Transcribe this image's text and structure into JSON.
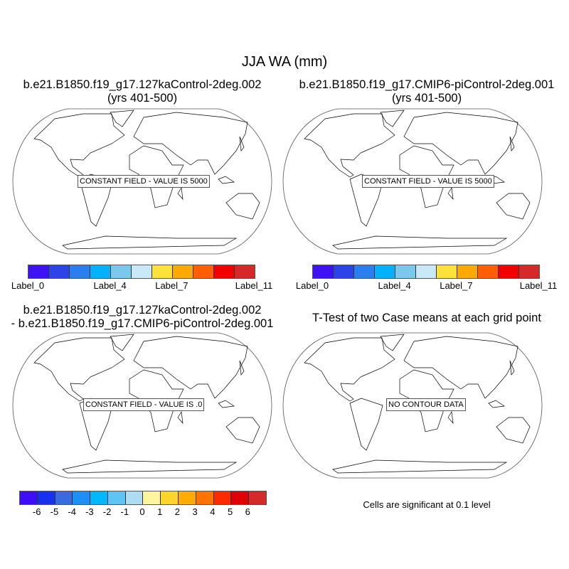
{
  "title": "JJA WA (mm)",
  "panels": [
    {
      "title_line1": "b.e21.B1850.f19_g17.127kaControl-2deg.002",
      "title_line2": "(yrs 401-500)",
      "label": "CONSTANT FIELD - VALUE IS 5000"
    },
    {
      "title_line1": "b.e21.B1850.f19_g17.CMIP6-piControl-2deg.001",
      "title_line2": "(yrs 401-500)",
      "label": "CONSTANT FIELD - VALUE IS 5000"
    },
    {
      "title_line1": "b.e21.B1850.f19_g17.127kaControl-2deg.002",
      "title_line2": "- b.e21.B1850.f19_g17.CMIP6-piControl-2deg.001",
      "label": "CONSTANT FIELD - VALUE IS .0"
    },
    {
      "title_line1": "T-Test of two Case means at each grid point",
      "label": "NO CONTOUR DATA",
      "note": "Cells are significant at 0.1 level"
    }
  ],
  "case_colorbar": {
    "colors": [
      "#3f12f6",
      "#2c44e6",
      "#2a7ff0",
      "#04b1fe",
      "#79c9ed",
      "#c9e8f8",
      "#fde23a",
      "#fea800",
      "#fe5f00",
      "#f10200",
      "#d42929"
    ],
    "labels": [
      {
        "text": "Label_0",
        "edge": 0
      },
      {
        "text": "Label_4",
        "edge": 4
      },
      {
        "text": "Label_7",
        "edge": 7
      },
      {
        "text": "Label_11",
        "edge": 11
      }
    ]
  },
  "diff_colorbar": {
    "colors": [
      "#3e0ef5",
      "#1830f0",
      "#3a6ae0",
      "#1f8ff8",
      "#00b8ff",
      "#5fc4f4",
      "#aedcf2",
      "#fff59f",
      "#ffd52c",
      "#ffab00",
      "#ff7300",
      "#ff2a00",
      "#e00000",
      "#d42a2a"
    ],
    "labels": [
      "-6",
      "-5",
      "-4",
      "-3",
      "-2",
      "-1",
      "0",
      "1",
      "2",
      "3",
      "4",
      "5",
      "6"
    ]
  }
}
